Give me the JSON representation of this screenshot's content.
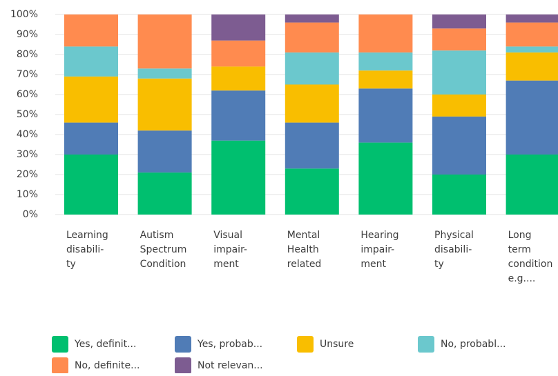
{
  "chart_data": {
    "type": "stacked-bar",
    "categories": [
      "Learning\ndisabili-\nty",
      "Autism\nSpectrum\nCondition",
      "Visual\nimpair-\nment",
      "Mental\nHealth\nrelated",
      "Hearing\nimpair-\nment",
      "Physical\ndisabili-\nty",
      "Long\nterm\ncondition\ne.g...."
    ],
    "series": [
      {
        "name": "Yes, definit...",
        "color": "#00bf6f",
        "values": [
          30,
          21,
          37,
          23,
          36,
          20,
          30
        ]
      },
      {
        "name": "Yes, probab...",
        "color": "#507cb6",
        "values": [
          16,
          21,
          25,
          23,
          27,
          29,
          37
        ]
      },
      {
        "name": "Unsure",
        "color": "#f9be00",
        "values": [
          23,
          26,
          12,
          19,
          9,
          11,
          14
        ]
      },
      {
        "name": "No, probabl...",
        "color": "#6bc8cd",
        "values": [
          15,
          5,
          0,
          16,
          9,
          22,
          3
        ]
      },
      {
        "name": "No, definite...",
        "color": "#ff8b4f",
        "values": [
          16,
          27,
          13,
          15,
          19,
          11,
          12
        ]
      },
      {
        "name": "Not relevan...",
        "color": "#7d5c91",
        "values": [
          0,
          0,
          13,
          4,
          0,
          7,
          4
        ]
      }
    ],
    "ylim": [
      0,
      100
    ],
    "yticks": [
      {
        "value": 0,
        "label": "0%"
      },
      {
        "value": 10,
        "label": "10%"
      },
      {
        "value": 20,
        "label": "20%"
      },
      {
        "value": 30,
        "label": "30%"
      },
      {
        "value": 40,
        "label": "40%"
      },
      {
        "value": 50,
        "label": "50%"
      },
      {
        "value": 60,
        "label": "60%"
      },
      {
        "value": 70,
        "label": "70%"
      },
      {
        "value": 80,
        "label": "80%"
      },
      {
        "value": 90,
        "label": "90%"
      },
      {
        "value": 100,
        "label": "100%"
      }
    ],
    "grid": true,
    "legend": "bottom"
  }
}
